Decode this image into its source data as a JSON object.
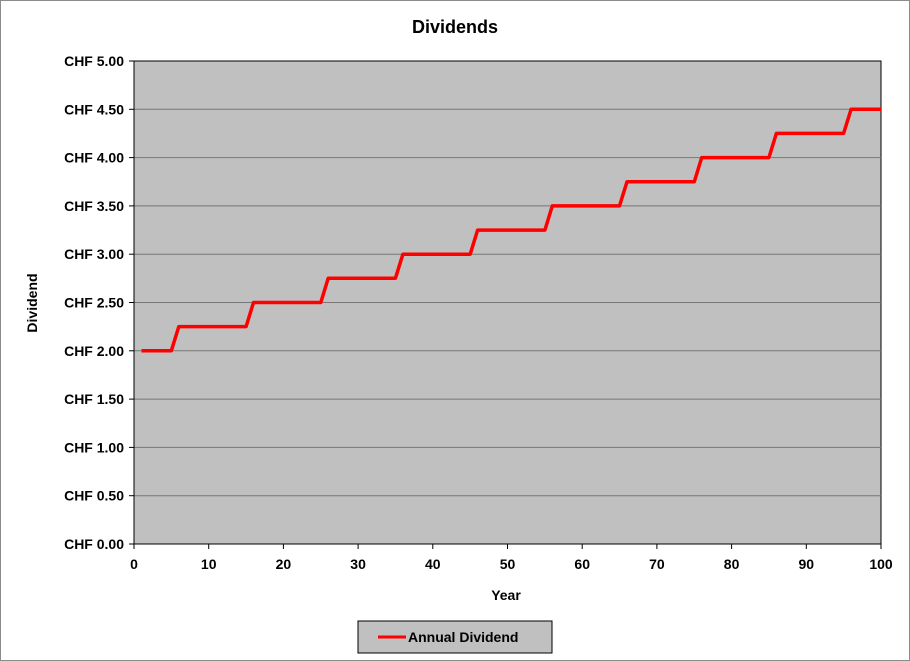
{
  "chart_data": {
    "type": "line",
    "title": "Dividends",
    "xlabel": "Year",
    "ylabel": "Dividend",
    "xlim": [
      0,
      100
    ],
    "ylim": [
      0,
      5
    ],
    "x_ticks": [
      0,
      10,
      20,
      30,
      40,
      50,
      60,
      70,
      80,
      90,
      100
    ],
    "y_ticks": [
      0,
      0.5,
      1,
      1.5,
      2,
      2.5,
      3,
      3.5,
      4,
      4.5,
      5
    ],
    "y_tick_labels": [
      "CHF 0.00",
      "CHF 0.50",
      "CHF 1.00",
      "CHF 1.50",
      "CHF 2.00",
      "CHF 2.50",
      "CHF 3.00",
      "CHF 3.50",
      "CHF 4.00",
      "CHF 4.50",
      "CHF 5.00"
    ],
    "grid": "horizontal",
    "plot_background": "#c0c0c0",
    "legend_position": "bottom",
    "series": [
      {
        "name": "Annual Dividend",
        "color": "#ff0000",
        "x": [
          1,
          5,
          6,
          15,
          16,
          25,
          26,
          35,
          36,
          45,
          46,
          55,
          56,
          65,
          66,
          75,
          76,
          85,
          86,
          95,
          96,
          100
        ],
        "y": [
          2.0,
          2.0,
          2.25,
          2.25,
          2.5,
          2.5,
          2.75,
          2.75,
          3.0,
          3.0,
          3.25,
          3.25,
          3.5,
          3.5,
          3.75,
          3.75,
          4.0,
          4.0,
          4.25,
          4.25,
          4.5,
          4.5
        ]
      }
    ]
  }
}
